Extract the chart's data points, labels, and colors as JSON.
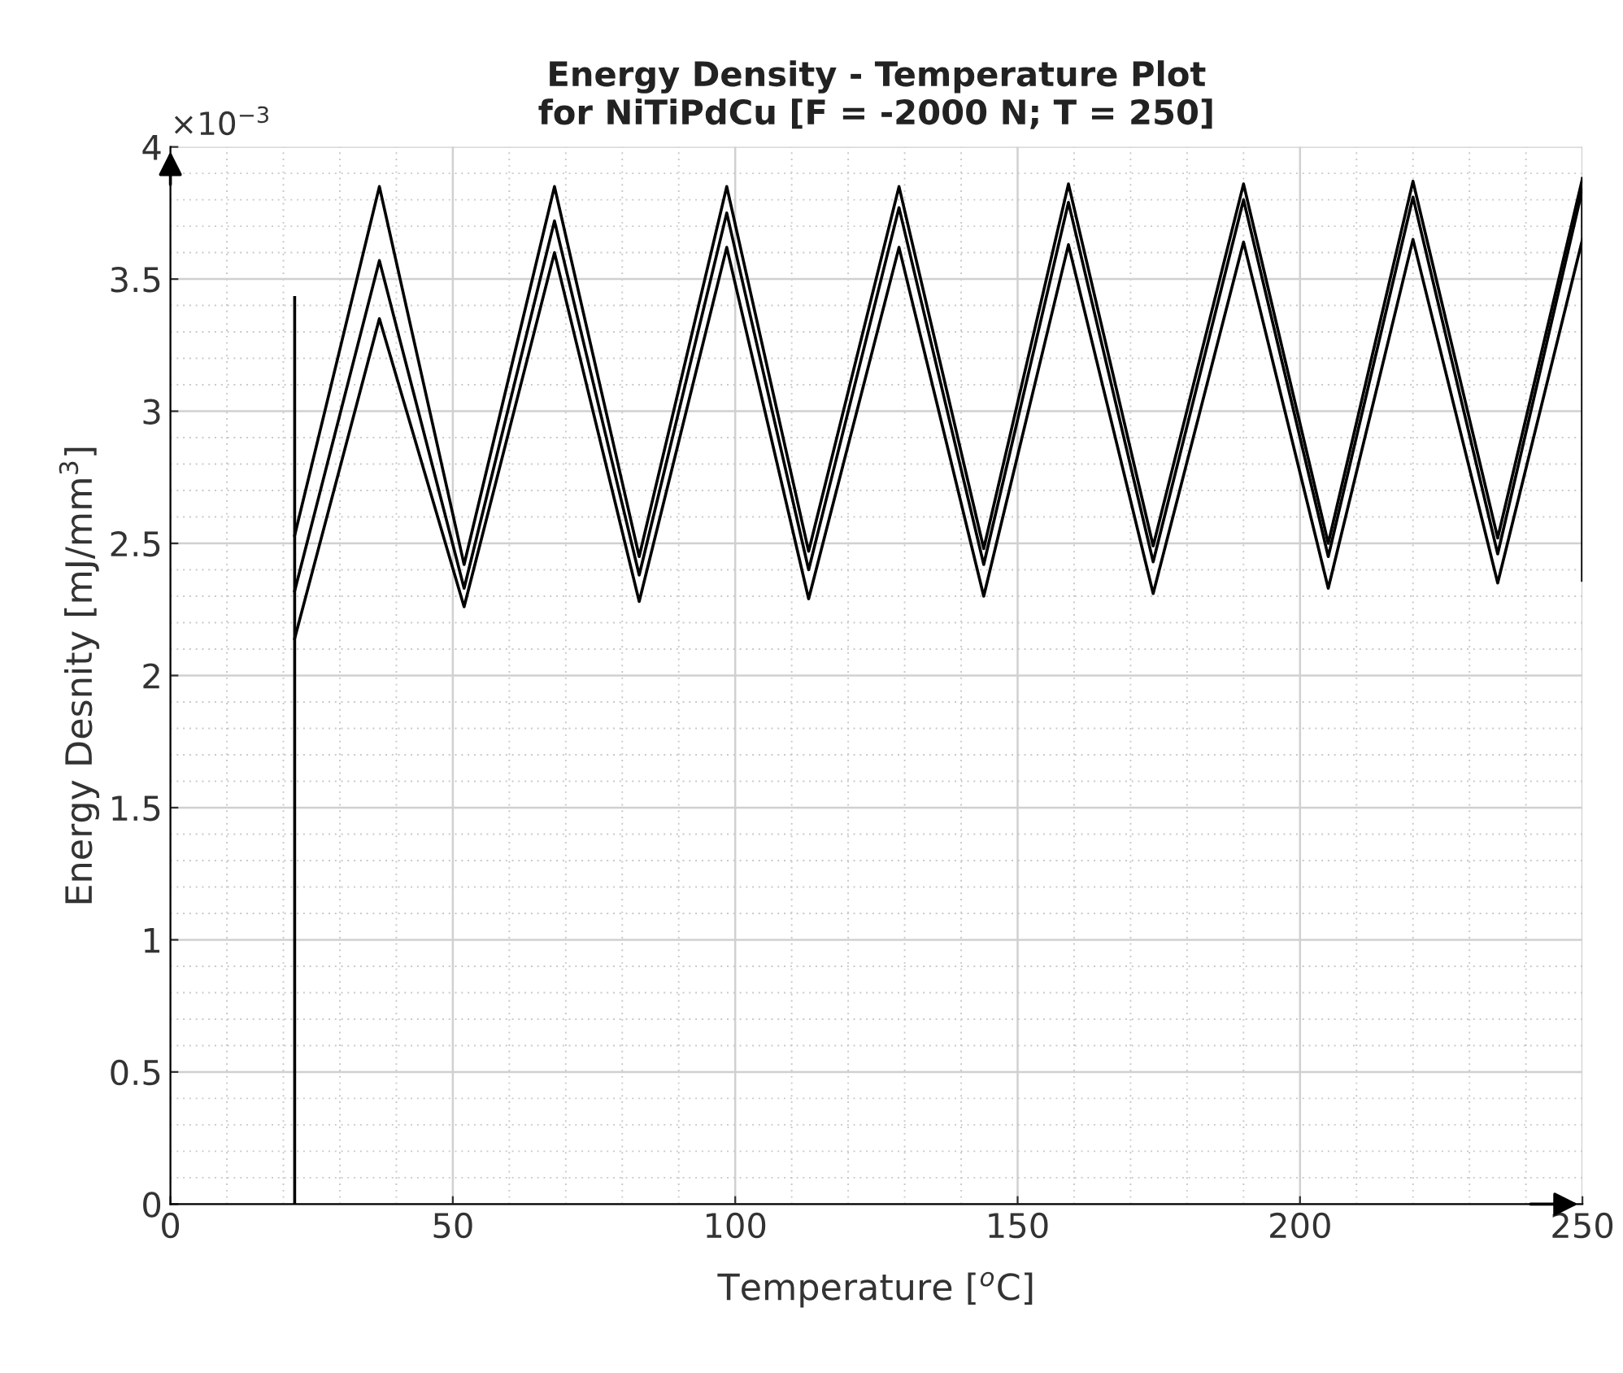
{
  "chart_data": {
    "type": "line",
    "title": "Energy Density - Temperature Plot\nfor NiTiPdCu [F = -2000 N; T = 250]",
    "xlabel": "Temperature [$^{o}$C]",
    "ylabel": "Energy Desnity [mJ/mm$^{3}$]",
    "annotations": [
      "×10$^{−3}$"
    ],
    "series": [
      {
        "color": "#000000",
        "x": [
          22,
          37,
          52,
          68,
          83,
          98.5,
          113,
          129,
          144,
          159,
          174,
          190,
          205,
          220,
          235,
          250
        ],
        "values": [
          2.53,
          3.85,
          2.42,
          3.85,
          2.45,
          3.85,
          2.47,
          3.85,
          2.48,
          3.86,
          2.49,
          3.86,
          2.5,
          3.87,
          2.52,
          3.88
        ]
      },
      {
        "color": "#000000",
        "x": [
          22,
          37,
          52,
          68,
          83,
          98.5,
          113,
          129,
          144,
          159,
          174,
          190,
          205,
          220,
          235,
          250
        ],
        "values": [
          2.32,
          3.57,
          2.33,
          3.72,
          2.38,
          3.75,
          2.4,
          3.77,
          2.42,
          3.79,
          2.43,
          3.8,
          2.45,
          3.81,
          2.46,
          3.84
        ]
      },
      {
        "color": "#000000",
        "x": [
          22,
          37,
          52,
          68,
          83,
          98.5,
          113,
          129,
          144,
          159,
          174,
          190,
          205,
          220,
          235,
          250
        ],
        "values": [
          2.14,
          3.35,
          2.26,
          3.6,
          2.28,
          3.62,
          2.29,
          3.62,
          2.3,
          3.63,
          2.31,
          3.64,
          2.33,
          3.65,
          2.35,
          3.65
        ]
      },
      {
        "color": "#000000",
        "x": [
          22,
          22
        ],
        "values": [
          0,
          3.43
        ]
      },
      {
        "color": "#000000",
        "x": [
          250,
          250
        ],
        "values": [
          2.36,
          3.88
        ]
      }
    ],
    "xlim": [
      0,
      250
    ],
    "xticks": [
      0,
      50,
      100,
      150,
      200,
      250
    ],
    "ylim": [
      0,
      4
    ],
    "yticks": [
      0,
      0.5,
      1,
      1.5,
      2,
      2.5,
      3,
      3.5,
      4
    ],
    "grid": true,
    "line_style": "solid"
  }
}
